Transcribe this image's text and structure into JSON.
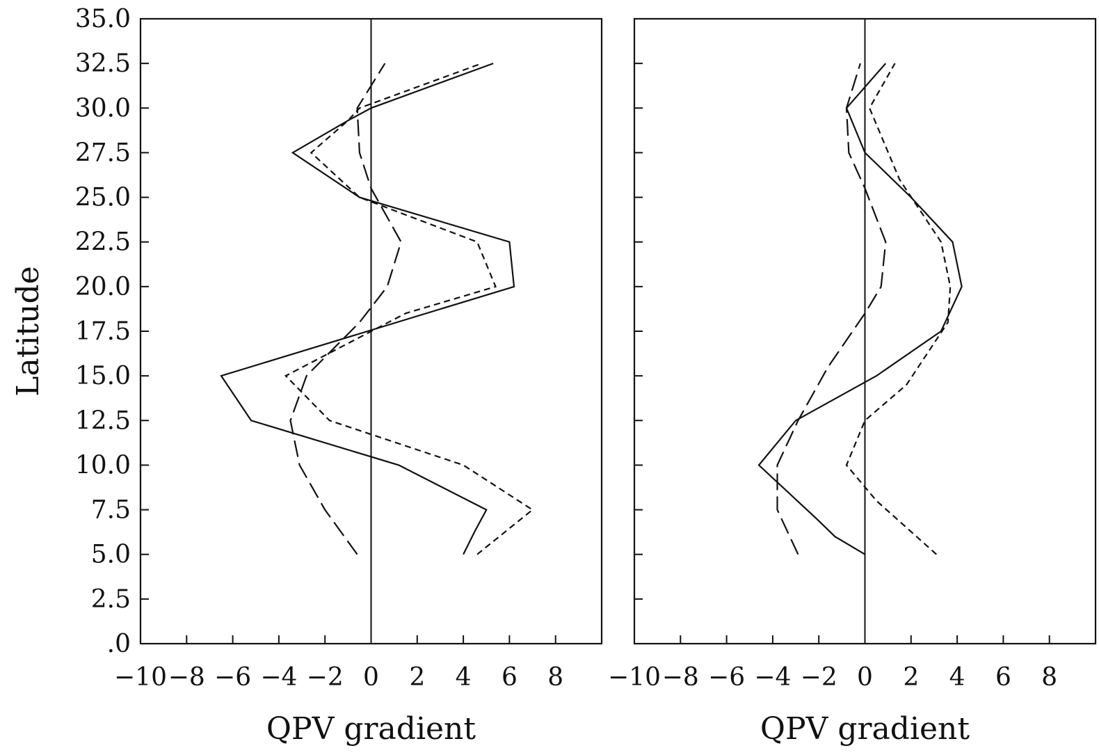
{
  "chart_data": [
    {
      "type": "line",
      "title": "",
      "xlabel": "QPV gradient",
      "ylabel": "Latitude",
      "xlim": [
        -10,
        10
      ],
      "ylim": [
        0,
        35
      ],
      "x_ticks": [
        -10,
        -8,
        -6,
        -4,
        -2,
        0,
        2,
        4,
        6,
        8
      ],
      "x_tick_labels": [
        "−10",
        "−8",
        "−6",
        "−4",
        "−2",
        "0",
        "2",
        "4",
        "6",
        "8"
      ],
      "y_ticks": [
        0,
        2.5,
        5,
        7.5,
        10,
        12.5,
        15,
        17.5,
        20,
        22.5,
        25,
        27.5,
        30,
        32.5,
        35
      ],
      "y_tick_labels": [
        ".0",
        "2.5",
        "5.0",
        "7.5",
        "10.0",
        "12.5",
        "15.0",
        "17.5",
        "20.0",
        "22.5",
        "25.0",
        "27.5",
        "30.0",
        "32.5",
        "35.0"
      ],
      "grid": false,
      "zero_line": true,
      "series": [
        {
          "style": "solid",
          "points": [
            [
              4.0,
              5.0
            ],
            [
              4.5,
              6.3
            ],
            [
              5.0,
              7.5
            ],
            [
              1.2,
              10.0
            ],
            [
              -5.2,
              12.5
            ],
            [
              -6.5,
              15.0
            ],
            [
              6.2,
              20.0
            ],
            [
              6.0,
              22.5
            ],
            [
              -0.5,
              25.0
            ],
            [
              -3.4,
              27.5
            ],
            [
              -1.0,
              29.3
            ],
            [
              0.0,
              30.0
            ],
            [
              5.3,
              32.5
            ]
          ]
        },
        {
          "style": "short-dash",
          "points": [
            [
              4.6,
              5.0
            ],
            [
              7.0,
              7.5
            ],
            [
              4.0,
              10.0
            ],
            [
              -1.8,
              12.5
            ],
            [
              -3.7,
              15.0
            ],
            [
              1.5,
              18.5
            ],
            [
              5.4,
              20.0
            ],
            [
              4.6,
              22.5
            ],
            [
              -0.5,
              25.0
            ],
            [
              -2.6,
              27.5
            ],
            [
              -1.0,
              29.3
            ],
            [
              -0.5,
              30.0
            ],
            [
              4.8,
              32.5
            ]
          ]
        },
        {
          "style": "long-dash",
          "points": [
            [
              -0.6,
              5.0
            ],
            [
              -2.0,
              7.5
            ],
            [
              -3.1,
              10.0
            ],
            [
              -3.5,
              12.5
            ],
            [
              -2.8,
              15.0
            ],
            [
              -0.5,
              18.0
            ],
            [
              0.7,
              20.0
            ],
            [
              1.3,
              22.5
            ],
            [
              0.0,
              25.5
            ],
            [
              -0.5,
              27.5
            ],
            [
              -0.6,
              30.0
            ],
            [
              0.6,
              32.5
            ]
          ]
        }
      ]
    },
    {
      "type": "line",
      "title": "",
      "xlabel": "QPV gradient",
      "ylabel": "",
      "xlim": [
        -10,
        10
      ],
      "ylim": [
        0,
        35
      ],
      "x_ticks": [
        -10,
        -8,
        -6,
        -4,
        -2,
        0,
        2,
        4,
        6,
        8
      ],
      "x_tick_labels": [
        "−10",
        "−8",
        "−6",
        "−4",
        "−2",
        "0",
        "2",
        "4",
        "6",
        "8"
      ],
      "grid": false,
      "zero_line": true,
      "series": [
        {
          "style": "solid",
          "points": [
            [
              0.0,
              5.0
            ],
            [
              -1.3,
              6.0
            ],
            [
              -2.1,
              7.0
            ],
            [
              -4.6,
              10.0
            ],
            [
              -3.0,
              12.5
            ],
            [
              0.5,
              15.0
            ],
            [
              3.3,
              17.5
            ],
            [
              4.2,
              20.0
            ],
            [
              3.8,
              22.5
            ],
            [
              2.0,
              25.0
            ],
            [
              0.0,
              27.5
            ],
            [
              -0.8,
              30.0
            ],
            [
              0.9,
              32.5
            ]
          ]
        },
        {
          "style": "short-dash",
          "points": [
            [
              3.1,
              5.0
            ],
            [
              0.5,
              8.0
            ],
            [
              -0.8,
              10.0
            ],
            [
              0.0,
              12.5
            ],
            [
              1.8,
              14.5
            ],
            [
              3.6,
              18.0
            ],
            [
              3.7,
              20.0
            ],
            [
              3.3,
              22.5
            ],
            [
              1.5,
              26.0
            ],
            [
              0.2,
              30.0
            ],
            [
              1.3,
              32.5
            ]
          ]
        },
        {
          "style": "long-dash",
          "points": [
            [
              -2.9,
              5.0
            ],
            [
              -3.8,
              7.5
            ],
            [
              -3.8,
              10.0
            ],
            [
              -2.9,
              12.5
            ],
            [
              -1.6,
              15.5
            ],
            [
              0.0,
              18.5
            ],
            [
              0.7,
              20.0
            ],
            [
              0.9,
              22.5
            ],
            [
              0.0,
              25.5
            ],
            [
              -0.7,
              27.5
            ],
            [
              -0.8,
              30.0
            ],
            [
              -0.2,
              32.5
            ]
          ]
        }
      ]
    }
  ]
}
